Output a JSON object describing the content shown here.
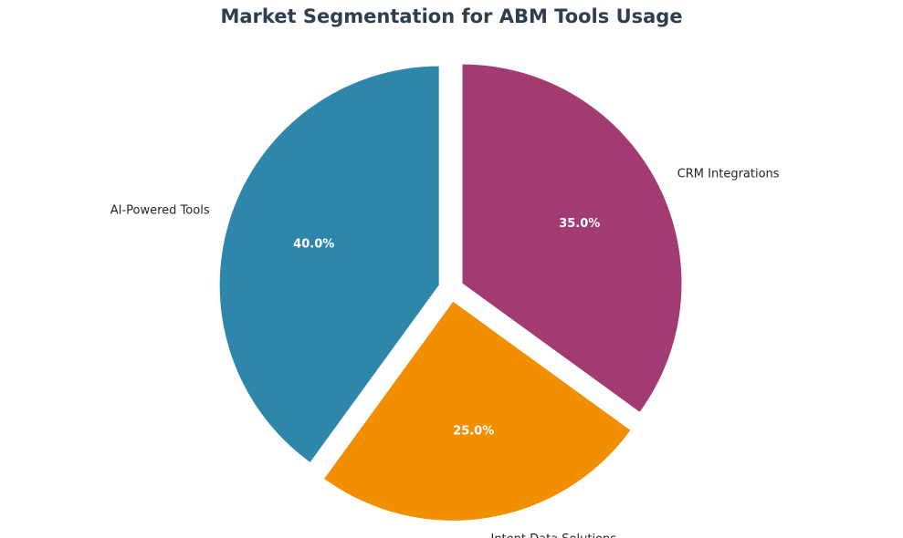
{
  "chart_data": {
    "type": "pie",
    "title": "Market Segmentation for ABM Tools Usage",
    "categories": [
      "AI-Powered Tools",
      "Intent Data Solutions",
      "CRM Integrations"
    ],
    "values": [
      40.0,
      25.0,
      35.0
    ],
    "value_labels": [
      "40.0%",
      "25.0%",
      "35.0%"
    ],
    "colors": [
      "#2e86ab",
      "#f18f01",
      "#a23b72"
    ],
    "exploded": true,
    "legend": "none"
  }
}
